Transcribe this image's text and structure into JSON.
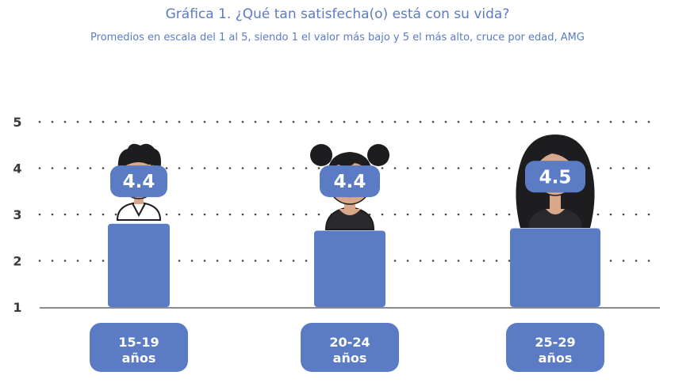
{
  "chart_data": {
    "type": "bar",
    "title": "Gráfica 1. ¿Qué tan satisfecha(o) está con su vida?",
    "subtitle": "Promedios en escala del 1 al 5, siendo 1 el valor más bajo y 5 el más alto, cruce por edad, AMG",
    "categories": [
      {
        "line1": "15-19",
        "line2": "años"
      },
      {
        "line1": "20-24",
        "line2": "años"
      },
      {
        "line1": "25-29",
        "line2": "años"
      }
    ],
    "values": [
      4.4,
      4.4,
      4.5
    ],
    "value_labels": [
      "4.4",
      "4.4",
      "4.5"
    ],
    "bar_top_scale_level": [
      2.8,
      2.65,
      2.7
    ],
    "y_ticks": [
      "1",
      "2",
      "3",
      "4",
      "5"
    ],
    "ylim": [
      1,
      5
    ],
    "grid": "dotted",
    "legend": "none",
    "illustrations": [
      "boy-avatar",
      "girl-buns-avatar",
      "woman-long-hair-avatar"
    ],
    "colors": {
      "bar": "#5b7cc4",
      "label_box": "#5b7cc4",
      "title": "#5b7cc4",
      "grid_dots": "#444444",
      "baseline": "#666666",
      "skin": "#d9a88b",
      "hair": "#1d1d1f"
    }
  }
}
